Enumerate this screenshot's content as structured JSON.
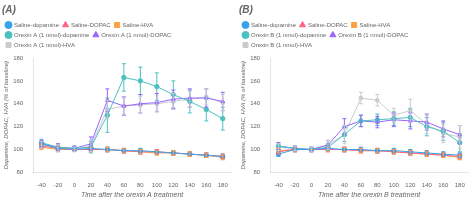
{
  "chart_data": [
    {
      "type": "line",
      "title": "(A)",
      "x_label": "Time after the orexin A treatment",
      "y_label": "Dopamine, DOPAC, HVA (% of baseline)",
      "x": [
        -40,
        -20,
        0,
        20,
        40,
        60,
        80,
        100,
        120,
        140,
        160,
        180
      ],
      "xlim": [
        -50,
        190
      ],
      "xticks": [
        -40,
        -20,
        0,
        20,
        40,
        60,
        80,
        100,
        120,
        140,
        160,
        180
      ],
      "ylim": [
        80,
        180
      ],
      "yticks": [
        80,
        100,
        120,
        140,
        160,
        180
      ],
      "grid": false,
      "legend": "top",
      "series": [
        {
          "name": "Saline-dopamine",
          "color": "#36a2eb",
          "marker": "circle",
          "values": [
            105,
            101,
            100,
            101,
            100,
            99,
            99,
            98,
            97,
            96,
            95,
            94
          ],
          "errors": [
            2,
            2,
            0,
            2,
            2,
            2,
            2,
            2,
            2,
            2,
            2,
            2
          ]
        },
        {
          "name": "Saline-DOPAC",
          "color": "#ff6384",
          "marker": "triangle",
          "values": [
            103,
            101,
            100,
            100,
            100,
            99,
            98,
            98,
            97,
            96,
            95,
            94
          ],
          "errors": [
            2,
            2,
            0,
            2,
            2,
            2,
            2,
            2,
            2,
            2,
            2,
            2
          ]
        },
        {
          "name": "Saline-HVA",
          "color": "#ff9f40",
          "marker": "square",
          "values": [
            102,
            100,
            100,
            100,
            100,
            99,
            98,
            97,
            97,
            96,
            95,
            93
          ],
          "errors": [
            2,
            2,
            0,
            2,
            2,
            2,
            2,
            2,
            2,
            2,
            2,
            2
          ]
        },
        {
          "name": "Orexin A (1 nmol)-dopamine",
          "color": "#4bc0c0",
          "marker": "circle",
          "values": [
            106,
            102,
            101,
            102,
            130,
            163,
            160,
            155,
            148,
            142,
            135,
            127
          ],
          "errors": [
            3,
            3,
            2,
            5,
            15,
            12,
            12,
            12,
            12,
            10,
            10,
            10
          ]
        },
        {
          "name": "Orexin A (1 nmol)-DOPAC",
          "color": "#9966ff",
          "marker": "triangle",
          "values": [
            105,
            102,
            101,
            105,
            143,
            138,
            140,
            141,
            144,
            145,
            145,
            142
          ],
          "errors": [
            3,
            3,
            2,
            6,
            10,
            8,
            8,
            8,
            8,
            8,
            8,
            8
          ]
        },
        {
          "name": "Orexin A (1 nmol)-HVA",
          "color": "#c9cbcf",
          "marker": "square",
          "values": [
            104,
            101,
            100,
            103,
            135,
            138,
            139,
            140,
            142,
            144,
            146,
            141
          ],
          "errors": [
            3,
            3,
            2,
            5,
            8,
            7,
            7,
            7,
            7,
            7,
            7,
            7
          ]
        }
      ]
    },
    {
      "type": "line",
      "title": "(B)",
      "x_label": "Time after the orexin B treatment",
      "y_label": "Dopamine, DOPAC, HVA (% of baseline)",
      "x": [
        -40,
        -20,
        0,
        20,
        40,
        60,
        80,
        100,
        120,
        140,
        160,
        180
      ],
      "xlim": [
        -50,
        190
      ],
      "xticks": [
        -40,
        -20,
        0,
        20,
        40,
        60,
        80,
        100,
        120,
        140,
        160,
        180
      ],
      "ylim": [
        80,
        180
      ],
      "yticks": [
        80,
        100,
        120,
        140,
        160,
        180
      ],
      "grid": false,
      "legend": "top",
      "series": [
        {
          "name": "Saline-dopamine",
          "color": "#36a2eb",
          "marker": "circle",
          "values": [
            96,
            100,
            100,
            101,
            100,
            100,
            99,
            99,
            98,
            97,
            96,
            95
          ],
          "errors": [
            2,
            2,
            0,
            2,
            2,
            2,
            2,
            2,
            2,
            2,
            2,
            2
          ]
        },
        {
          "name": "Saline-DOPAC",
          "color": "#ff6384",
          "marker": "triangle",
          "values": [
            98,
            100,
            100,
            100,
            100,
            99,
            99,
            98,
            97,
            96,
            95,
            94
          ],
          "errors": [
            2,
            2,
            0,
            2,
            2,
            2,
            2,
            2,
            2,
            2,
            2,
            2
          ]
        },
        {
          "name": "Saline-HVA",
          "color": "#ff9f40",
          "marker": "square",
          "values": [
            99,
            100,
            100,
            100,
            100,
            99,
            99,
            98,
            97,
            96,
            95,
            93
          ],
          "errors": [
            2,
            2,
            0,
            2,
            2,
            2,
            2,
            2,
            2,
            2,
            2,
            2
          ]
        },
        {
          "name": "Orexin B (1 nmol)-dopamine",
          "color": "#4bc0c0",
          "marker": "circle",
          "values": [
            103,
            101,
            100,
            102,
            113,
            125,
            126,
            127,
            128,
            120,
            116,
            106
          ],
          "errors": [
            3,
            2,
            2,
            3,
            6,
            5,
            5,
            6,
            8,
            8,
            8,
            8
          ]
        },
        {
          "name": "Orexin B (1 nmol)-DOPAC",
          "color": "#9966ff",
          "marker": "triangle",
          "values": [
            103,
            101,
            100,
            104,
            120,
            125,
            124,
            126,
            125,
            124,
            118,
            113
          ],
          "errors": [
            3,
            2,
            2,
            4,
            7,
            5,
            5,
            6,
            7,
            7,
            7,
            8
          ]
        },
        {
          "name": "Orexin B (1 nmol)-HVA",
          "color": "#c9cbcf",
          "marker": "square",
          "values": [
            102,
            101,
            100,
            104,
            113,
            145,
            143,
            130,
            134,
            122,
            114,
            111
          ],
          "errors": [
            3,
            2,
            2,
            4,
            8,
            5,
            5,
            6,
            10,
            8,
            8,
            10
          ]
        }
      ]
    }
  ]
}
